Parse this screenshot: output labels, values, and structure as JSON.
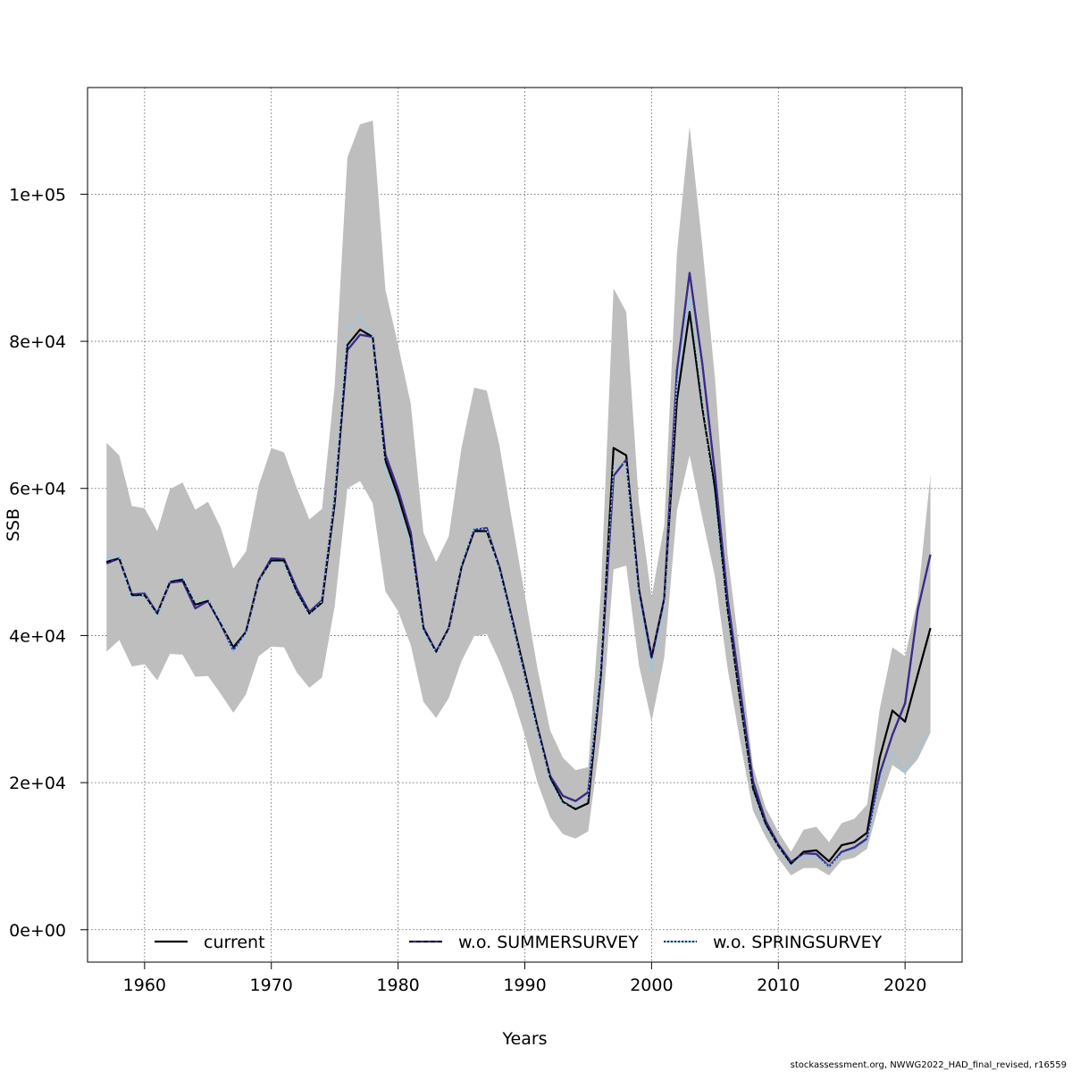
{
  "chart_data": {
    "type": "line",
    "xlabel": "Years",
    "ylabel": "SSB",
    "xlim": [
      1955.5,
      2024.5
    ],
    "ylim": [
      -4400,
      114500
    ],
    "x_ticks": [
      1960,
      1970,
      1980,
      1990,
      2000,
      2010,
      2020
    ],
    "x_tick_labels": [
      "1960",
      "1970",
      "1980",
      "1990",
      "2000",
      "2010",
      "2020"
    ],
    "y_ticks": [
      0,
      20000,
      40000,
      60000,
      80000,
      100000
    ],
    "y_tick_labels": [
      "0e+00",
      "2e+04",
      "4e+04",
      "6e+04",
      "8e+04",
      "1e+05"
    ],
    "grid": true,
    "legend_position": "bottom",
    "x": [
      1957,
      1958,
      1959,
      1960,
      1961,
      1962,
      1963,
      1964,
      1965,
      1966,
      1967,
      1968,
      1969,
      1970,
      1971,
      1972,
      1973,
      1974,
      1975,
      1976,
      1977,
      1978,
      1979,
      1980,
      1981,
      1982,
      1983,
      1984,
      1985,
      1986,
      1987,
      1988,
      1989,
      1990,
      1991,
      1992,
      1993,
      1994,
      1995,
      1996,
      1997,
      1998,
      1999,
      2000,
      2001,
      2002,
      2003,
      2004,
      2005,
      2006,
      2007,
      2008,
      2009,
      2010,
      2011,
      2012,
      2013,
      2014,
      2015,
      2016,
      2017,
      2018,
      2019,
      2020,
      2021,
      2022
    ],
    "band": {
      "color": "#bebebe",
      "upper": [
        66200,
        64500,
        57600,
        57300,
        54200,
        59900,
        60800,
        57100,
        58200,
        54700,
        49100,
        51400,
        60400,
        65500,
        64900,
        60100,
        55800,
        57200,
        74000,
        105000,
        109500,
        110000,
        87000,
        79500,
        71500,
        54000,
        50000,
        53500,
        65500,
        73700,
        73300,
        65800,
        55500,
        45500,
        35500,
        27100,
        23400,
        21700,
        22100,
        46000,
        87200,
        84000,
        58000,
        45200,
        55000,
        92000,
        109200,
        93000,
        75000,
        51000,
        37000,
        22200,
        16600,
        13300,
        10600,
        13600,
        14000,
        11900,
        14500,
        15100,
        17000,
        30000,
        38400,
        37200,
        45000,
        61800
      ],
      "lower": [
        37800,
        39400,
        35800,
        36100,
        33900,
        37500,
        37400,
        34400,
        34500,
        32100,
        29500,
        32000,
        37200,
        38500,
        38400,
        35000,
        32900,
        34300,
        44000,
        60000,
        61000,
        58000,
        46000,
        43300,
        38700,
        31000,
        28800,
        31500,
        36500,
        39900,
        40200,
        36500,
        32000,
        26400,
        20000,
        15300,
        13000,
        12400,
        13400,
        26500,
        49000,
        49500,
        36000,
        28300,
        37000,
        57000,
        64500,
        56000,
        48000,
        35500,
        25500,
        16200,
        12600,
        9700,
        7400,
        8400,
        8400,
        7400,
        9400,
        9800,
        11000,
        17400,
        22400,
        21200,
        23200,
        26800
      ]
    },
    "series": [
      {
        "name": "current",
        "color": "#000000",
        "dash": "solid",
        "values": [
          50000,
          50500,
          45500,
          45500,
          43000,
          47300,
          47600,
          44200,
          44700,
          41600,
          38400,
          40500,
          47500,
          50200,
          50200,
          46000,
          43000,
          44500,
          58000,
          79500,
          81600,
          80600,
          63800,
          59000,
          53300,
          41000,
          37800,
          41000,
          49300,
          54200,
          54200,
          49300,
          42300,
          35000,
          27600,
          20700,
          17400,
          16400,
          17200,
          34600,
          65500,
          64500,
          46300,
          37100,
          45000,
          72000,
          84000,
          71000,
          60000,
          43500,
          31000,
          19200,
          14400,
          11400,
          9000,
          10600,
          10800,
          9300,
          11500,
          11900,
          13200,
          23400,
          29800,
          28300,
          34700,
          41000
        ]
      },
      {
        "name": "w.o. SUMMERSURVEY",
        "color": "#3b2a8a",
        "dash": "dashed",
        "values": [
          49800,
          50500,
          45600,
          45700,
          43000,
          47200,
          47400,
          43700,
          44700,
          41600,
          38000,
          40500,
          47500,
          50500,
          50400,
          46400,
          43200,
          44800,
          58500,
          78800,
          80900,
          80600,
          64600,
          59800,
          54000,
          41100,
          37800,
          41000,
          49300,
          54400,
          54600,
          49200,
          42200,
          34700,
          27500,
          20900,
          18200,
          17500,
          18700,
          34800,
          61700,
          63900,
          46300,
          37000,
          45000,
          76000,
          89300,
          77000,
          62000,
          45000,
          32500,
          20200,
          14800,
          11600,
          9200,
          10400,
          10300,
          8600,
          10600,
          11200,
          12400,
          21200,
          26500,
          30800,
          43500,
          51000
        ]
      },
      {
        "name": "w.o. SPRINGSURVEY",
        "color": "#87ceeb",
        "dash": "dotted",
        "values": [
          50500,
          50800,
          45000,
          45600,
          42600,
          47500,
          48000,
          44400,
          45000,
          41900,
          37800,
          40300,
          47400,
          50000,
          49800,
          45700,
          42700,
          44700,
          58700,
          81700,
          83200,
          80700,
          62400,
          57500,
          52000,
          40500,
          37700,
          40800,
          49700,
          54600,
          54400,
          48800,
          41800,
          34500,
          27000,
          20200,
          17100,
          16800,
          18000,
          36500,
          63000,
          63500,
          45000,
          35300,
          43500,
          74000,
          86000,
          72000,
          58000,
          43000,
          31000,
          18700,
          14000,
          11200,
          8600,
          10000,
          9900,
          8600,
          10300,
          10800,
          12000,
          20200,
          24000,
          21500,
          24500,
          27000
        ]
      }
    ],
    "legend": [
      "current",
      "w.o. SUMMERSURVEY",
      "w.o. SPRINGSURVEY"
    ]
  },
  "footer": "stockassessment.org, NWWG2022_HAD_final_revised, r16559"
}
